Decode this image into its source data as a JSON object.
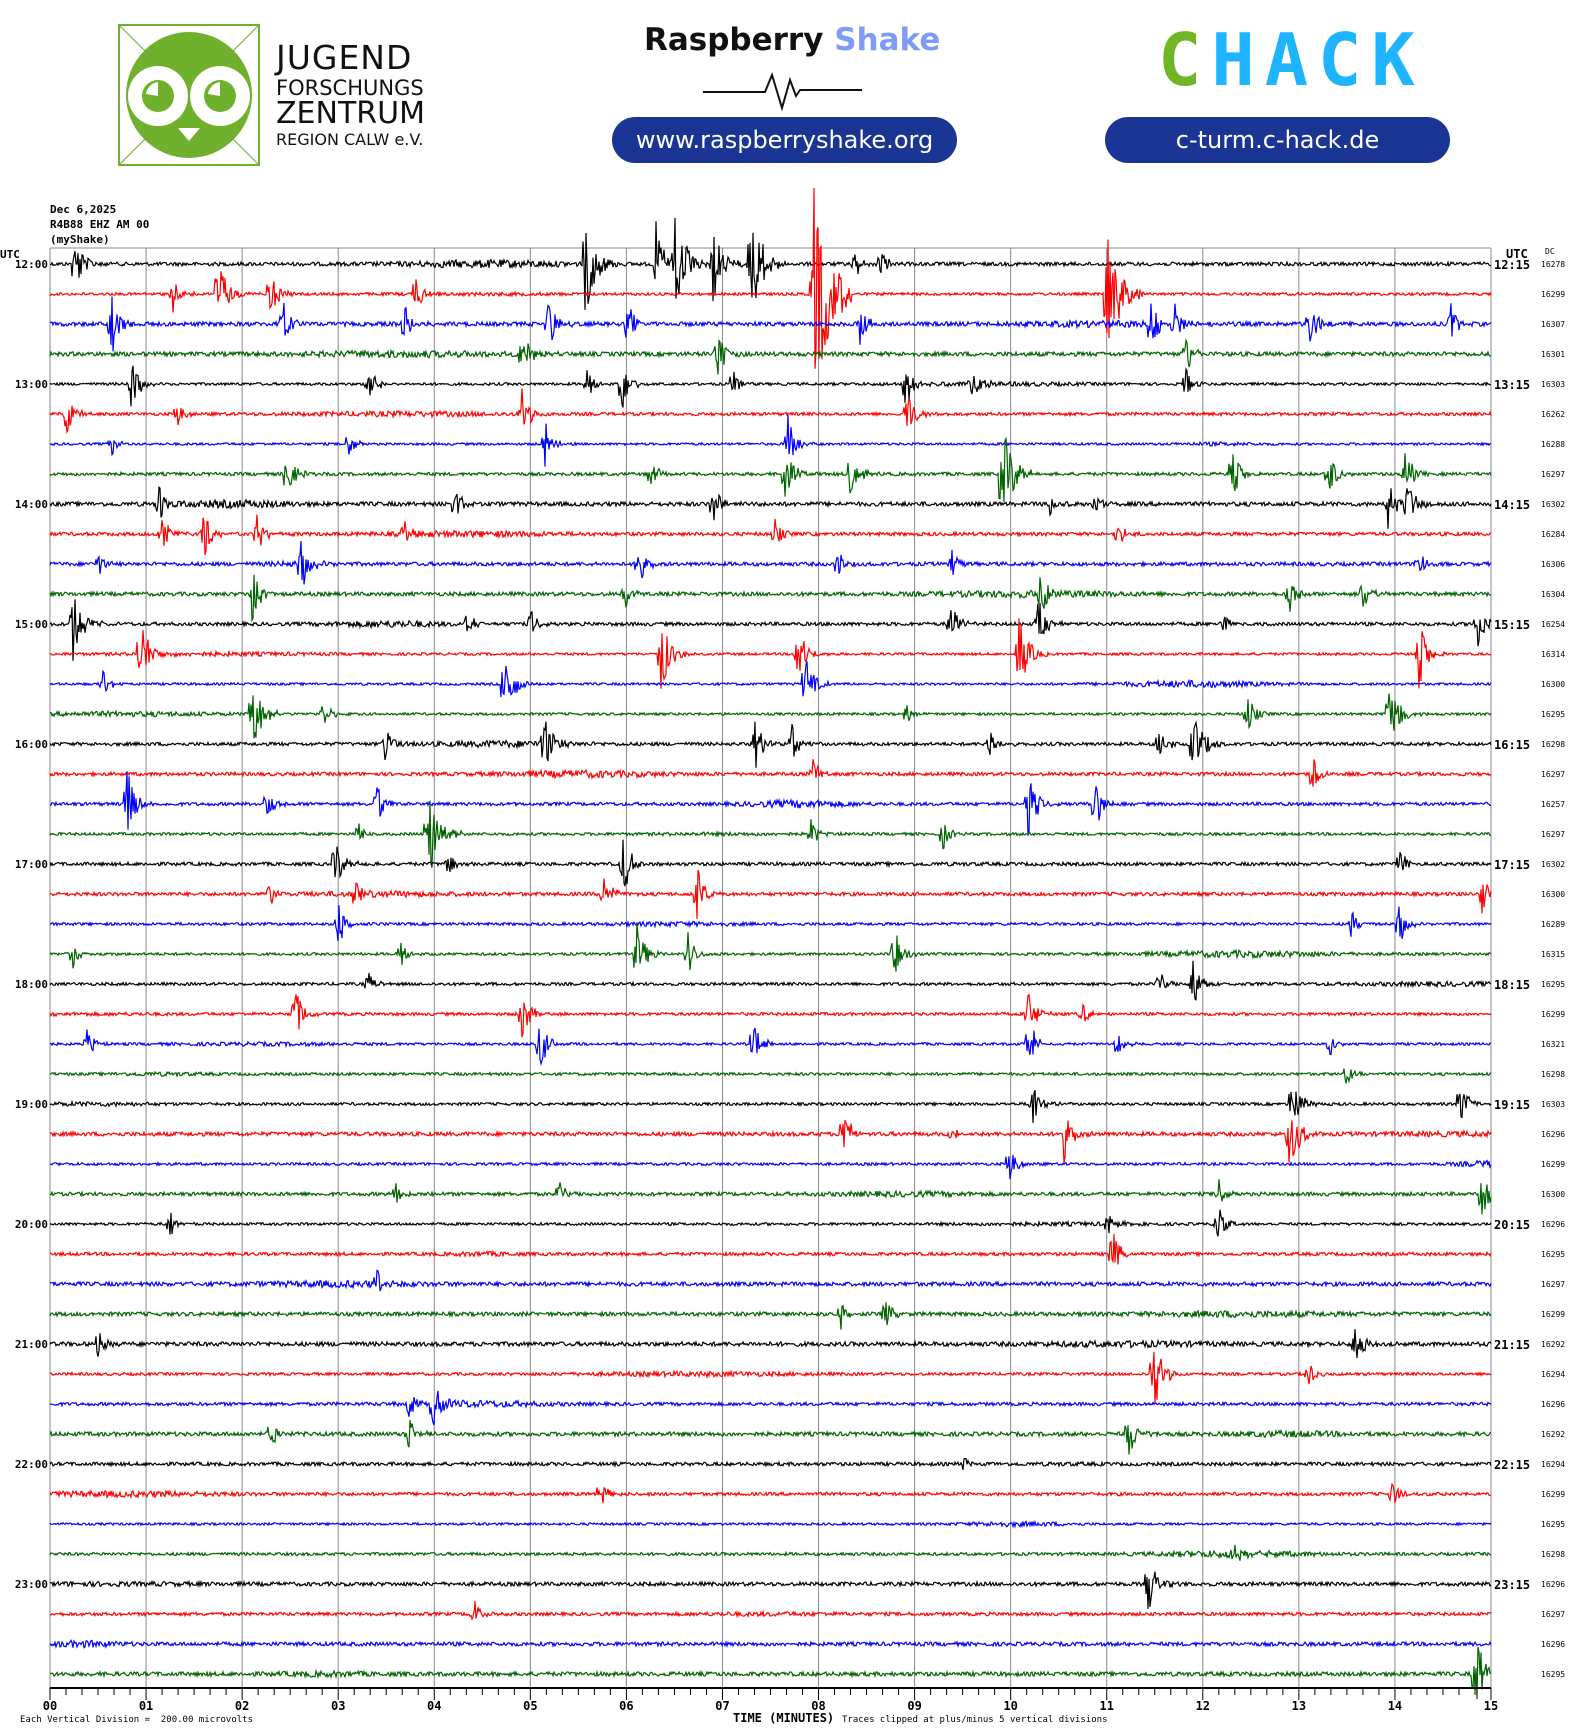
{
  "header": {
    "jfz_logo": {
      "line1": "JUGEND",
      "line2": "FORSCHUNGS",
      "line3": "ZENTRUM",
      "line4": "REGION CALW e.V."
    },
    "raspberry_shake": {
      "title_a": "Raspberry",
      "title_b": "Shake",
      "url": "www.raspberryshake.org"
    },
    "chack": {
      "logo_c": "C",
      "logo_hack": "HACK",
      "url": "c-turm.c-hack.de"
    },
    "colors": {
      "pill": "#1a3594",
      "shake": "#7e9cf5",
      "chack_green": "#6fb526",
      "chack_blue": "#1eb4ff",
      "jfz_green": "#6fb12c"
    }
  },
  "chart_data": {
    "type": "helicorder",
    "date": "Dec 6,2025",
    "station": "R4B88 EHZ AM 00",
    "network": "(myShake)",
    "left_axis_label": "UTC",
    "right_axis_label": "UTC",
    "dc_label": "DC",
    "minutes_per_row": 15,
    "rows": 48,
    "left_times": [
      "12:00",
      "13:00",
      "14:00",
      "15:00",
      "16:00",
      "17:00",
      "18:00",
      "19:00",
      "20:00",
      "21:00",
      "22:00",
      "23:00"
    ],
    "right_times": [
      "12:15",
      "13:15",
      "14:15",
      "15:15",
      "16:15",
      "17:15",
      "18:15",
      "19:15",
      "20:15",
      "21:15",
      "22:15",
      "23:15"
    ],
    "dc_offsets": [
      "16278",
      "16299",
      "16307",
      "16301",
      "16303",
      "16262",
      "16288",
      "16297",
      "16302",
      "16284",
      "16306",
      "16304",
      "16254",
      "16314",
      "16300",
      "16295",
      "16298",
      "16297",
      "16257",
      "16297",
      "16302",
      "16300",
      "16289",
      "16315",
      "16295",
      "16299",
      "16321",
      "16298",
      "16303",
      "16296",
      "16299",
      "16300",
      "16296",
      "16295",
      "16297",
      "16299",
      "16292",
      "16294",
      "16296",
      "16292",
      "16294",
      "16299",
      "16295",
      "16298",
      "16296",
      "16297",
      "16296",
      "16295"
    ],
    "trace_colors": [
      "#000000",
      "#ff0000",
      "#0000ff",
      "#006400"
    ],
    "x_ticks": [
      "00",
      "01",
      "02",
      "03",
      "04",
      "05",
      "06",
      "07",
      "08",
      "09",
      "10",
      "11",
      "12",
      "13",
      "14",
      "15"
    ],
    "xlim": [
      0,
      15
    ],
    "xlabel": "TIME (MINUTES)",
    "scale_note": "Each Vertical Division =  200.00 microvolts",
    "clip_note": "Traces clipped at plus/minus 5 vertical divisions",
    "events_format": "[row, minute, amplitude_divisions]",
    "events": [
      [
        0,
        0.25,
        1.2
      ],
      [
        0,
        5.56,
        2
      ],
      [
        0,
        6.3,
        1.5
      ],
      [
        0,
        6.5,
        2
      ],
      [
        0,
        6.9,
        1.4
      ],
      [
        0,
        7.28,
        2.3
      ],
      [
        0,
        8.37,
        0.6
      ],
      [
        0,
        8.64,
        0.6
      ],
      [
        1,
        1.27,
        0.8
      ],
      [
        1,
        1.74,
        1.5
      ],
      [
        1,
        2.28,
        1
      ],
      [
        1,
        3.8,
        0.8
      ],
      [
        1,
        7.94,
        4
      ],
      [
        1,
        11.0,
        2.5
      ],
      [
        2,
        0.63,
        1.2
      ],
      [
        2,
        2.42,
        1
      ],
      [
        2,
        3.68,
        0.8
      ],
      [
        2,
        5.18,
        1
      ],
      [
        2,
        6.0,
        1
      ],
      [
        2,
        8.43,
        0.8
      ],
      [
        2,
        11.45,
        1
      ],
      [
        2,
        11.7,
        0.8
      ],
      [
        2,
        13.1,
        1
      ],
      [
        2,
        14.58,
        0.8
      ],
      [
        3,
        4.91,
        1
      ],
      [
        3,
        6.94,
        1
      ],
      [
        3,
        11.82,
        0.8
      ],
      [
        4,
        0.84,
        1
      ],
      [
        4,
        3.3,
        1
      ],
      [
        4,
        5.58,
        0.8
      ],
      [
        4,
        5.95,
        1
      ],
      [
        4,
        7.1,
        0.6
      ],
      [
        4,
        8.9,
        1
      ],
      [
        4,
        9.58,
        1
      ],
      [
        4,
        11.82,
        0.6
      ],
      [
        5,
        0.15,
        1
      ],
      [
        5,
        1.32,
        0.6
      ],
      [
        5,
        4.91,
        1
      ],
      [
        5,
        8.92,
        1
      ],
      [
        6,
        0.63,
        0.5
      ],
      [
        6,
        3.1,
        0.6
      ],
      [
        6,
        5.15,
        0.8
      ],
      [
        6,
        7.68,
        1
      ],
      [
        7,
        2.45,
        1
      ],
      [
        7,
        6.25,
        0.6
      ],
      [
        7,
        7.65,
        1
      ],
      [
        7,
        8.32,
        1
      ],
      [
        7,
        9.9,
        2
      ],
      [
        7,
        12.3,
        1
      ],
      [
        7,
        13.3,
        1
      ],
      [
        7,
        14.1,
        1
      ],
      [
        8,
        1.13,
        0.8
      ],
      [
        8,
        4.2,
        0.8
      ],
      [
        8,
        6.9,
        0.8
      ],
      [
        8,
        10.39,
        0.6
      ],
      [
        8,
        10.87,
        0.5
      ],
      [
        8,
        13.92,
        1
      ],
      [
        8,
        14.12,
        1
      ],
      [
        9,
        1.15,
        0.8
      ],
      [
        9,
        1.59,
        1
      ],
      [
        9,
        2.15,
        0.8
      ],
      [
        9,
        3.68,
        0.6
      ],
      [
        9,
        7.54,
        0.6
      ],
      [
        9,
        11.1,
        0.6
      ],
      [
        10,
        0.5,
        0.5
      ],
      [
        10,
        2.61,
        1
      ],
      [
        10,
        6.12,
        0.8
      ],
      [
        10,
        8.2,
        0.6
      ],
      [
        10,
        9.38,
        0.6
      ],
      [
        10,
        14.23,
        0.6
      ],
      [
        11,
        2.1,
        1.2
      ],
      [
        11,
        5.98,
        0.6
      ],
      [
        11,
        10.3,
        1
      ],
      [
        11,
        12.89,
        0.8
      ],
      [
        11,
        13.66,
        0.8
      ],
      [
        12,
        0.23,
        1.5
      ],
      [
        12,
        4.34,
        0.6
      ],
      [
        12,
        5.0,
        0.6
      ],
      [
        12,
        9.36,
        1
      ],
      [
        12,
        10.28,
        1
      ],
      [
        12,
        12.2,
        0.5
      ],
      [
        12,
        14.85,
        1
      ],
      [
        13,
        0.93,
        1.5
      ],
      [
        13,
        6.35,
        1.5
      ],
      [
        13,
        7.77,
        1.2
      ],
      [
        13,
        10.07,
        1.5
      ],
      [
        13,
        14.25,
        1.2
      ],
      [
        14,
        0.55,
        0.6
      ],
      [
        14,
        4.72,
        1.5
      ],
      [
        14,
        7.85,
        1.2
      ],
      [
        15,
        2.1,
        1.5
      ],
      [
        15,
        2.84,
        0.6
      ],
      [
        15,
        8.92,
        0.4
      ],
      [
        15,
        12.46,
        0.8
      ],
      [
        15,
        13.93,
        1.5
      ],
      [
        16,
        3.48,
        0.8
      ],
      [
        16,
        5.14,
        1.2
      ],
      [
        16,
        7.33,
        1
      ],
      [
        16,
        7.71,
        0.8
      ],
      [
        16,
        9.75,
        1
      ],
      [
        16,
        11.54,
        0.8
      ],
      [
        16,
        11.89,
        1.5
      ],
      [
        17,
        7.94,
        0.6
      ],
      [
        17,
        13.14,
        0.8
      ],
      [
        18,
        0.8,
        1.2
      ],
      [
        18,
        2.24,
        0.8
      ],
      [
        18,
        3.4,
        0.8
      ],
      [
        18,
        10.18,
        1.2
      ],
      [
        18,
        10.87,
        1
      ],
      [
        19,
        3.21,
        0.5
      ],
      [
        19,
        3.92,
        2
      ],
      [
        19,
        7.92,
        0.6
      ],
      [
        19,
        9.29,
        0.6
      ],
      [
        20,
        2.96,
        1
      ],
      [
        20,
        4.13,
        0.6
      ],
      [
        20,
        5.96,
        1.2
      ],
      [
        20,
        14.05,
        0.6
      ],
      [
        21,
        2.28,
        0.6
      ],
      [
        21,
        3.17,
        0.8
      ],
      [
        21,
        5.75,
        1
      ],
      [
        21,
        6.73,
        1
      ],
      [
        21,
        14.9,
        0.8
      ],
      [
        22,
        2.99,
        1
      ],
      [
        22,
        13.54,
        0.6
      ],
      [
        22,
        14.04,
        0.8
      ],
      [
        23,
        0.23,
        0.6
      ],
      [
        23,
        3.65,
        0.6
      ],
      [
        23,
        6.1,
        1.2
      ],
      [
        23,
        6.64,
        0.8
      ],
      [
        23,
        8.78,
        1
      ],
      [
        24,
        3.3,
        0.6
      ],
      [
        24,
        11.54,
        0.6
      ],
      [
        24,
        11.89,
        1
      ],
      [
        25,
        2.55,
        1
      ],
      [
        25,
        4.91,
        1
      ],
      [
        25,
        10.18,
        1
      ],
      [
        25,
        10.74,
        0.5
      ],
      [
        26,
        0.38,
        0.6
      ],
      [
        26,
        5.09,
        1
      ],
      [
        26,
        7.31,
        1
      ],
      [
        26,
        10.18,
        1
      ],
      [
        26,
        11.1,
        0.6
      ],
      [
        26,
        13.32,
        0.5
      ],
      [
        27,
        13.49,
        0.5
      ],
      [
        28,
        10.22,
        1
      ],
      [
        28,
        12.92,
        1.2
      ],
      [
        28,
        14.67,
        1
      ],
      [
        29,
        8.25,
        1
      ],
      [
        29,
        9.38,
        0.5
      ],
      [
        29,
        10.55,
        1
      ],
      [
        29,
        12.89,
        1.5
      ],
      [
        30,
        9.98,
        0.8
      ],
      [
        31,
        3.6,
        0.6
      ],
      [
        31,
        5.29,
        0.6
      ],
      [
        31,
        12.16,
        0.6
      ],
      [
        31,
        14.9,
        1
      ],
      [
        32,
        1.24,
        0.6
      ],
      [
        32,
        11.01,
        0.5
      ],
      [
        32,
        12.14,
        0.8
      ],
      [
        33,
        11.05,
        1
      ],
      [
        34,
        3.4,
        0.6
      ],
      [
        35,
        8.23,
        0.6
      ],
      [
        35,
        8.69,
        0.6
      ],
      [
        36,
        0.49,
        0.6
      ],
      [
        36,
        13.58,
        1
      ],
      [
        37,
        11.48,
        1.5
      ],
      [
        37,
        13.09,
        0.6
      ],
      [
        38,
        3.72,
        0.8
      ],
      [
        38,
        3.98,
        1
      ],
      [
        39,
        2.3,
        0.6
      ],
      [
        39,
        3.72,
        0.8
      ],
      [
        39,
        11.22,
        1
      ],
      [
        40,
        9.5,
        0.4
      ],
      [
        41,
        5.72,
        0.6
      ],
      [
        41,
        13.96,
        0.6
      ],
      [
        43,
        12.31,
        0.5
      ],
      [
        44,
        11.42,
        1.2
      ],
      [
        45,
        4.4,
        0.6
      ],
      [
        47,
        14.83,
        1.5
      ]
    ]
  }
}
